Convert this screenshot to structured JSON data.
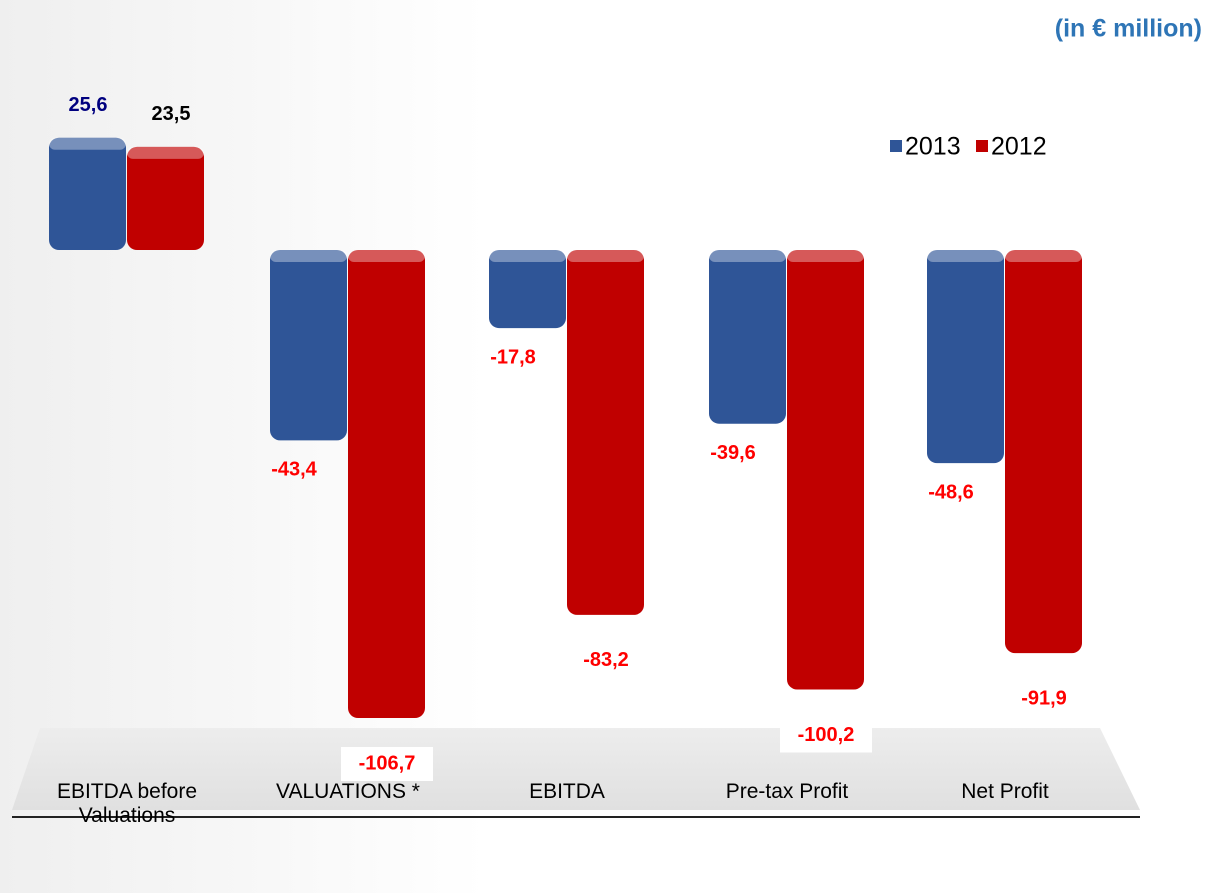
{
  "chart_data": {
    "type": "bar",
    "title": "(in € million)",
    "categories": [
      "EBITDA before Valuations",
      "VALUATIONS *",
      "EBITDA",
      "Pre-tax Profit",
      "Net Profit"
    ],
    "series": [
      {
        "name": "2013",
        "color": "#2f5597",
        "label_color": "#00007f",
        "values": [
          25.6,
          -43.4,
          -17.8,
          -39.6,
          -48.6
        ],
        "value_labels": [
          "25,6",
          "-43,4",
          "-17,8",
          "-39,6",
          "-48,6"
        ]
      },
      {
        "name": "2012",
        "color": "#c00000",
        "label_color": "#000000",
        "values": [
          23.5,
          -106.7,
          -83.2,
          -100.2,
          -91.9
        ],
        "value_labels": [
          "23,5",
          "-106,7",
          "-83,2",
          "-100,2",
          "-91,9"
        ]
      }
    ],
    "negative_label_color": "#ff0000",
    "legend": "top-right"
  }
}
